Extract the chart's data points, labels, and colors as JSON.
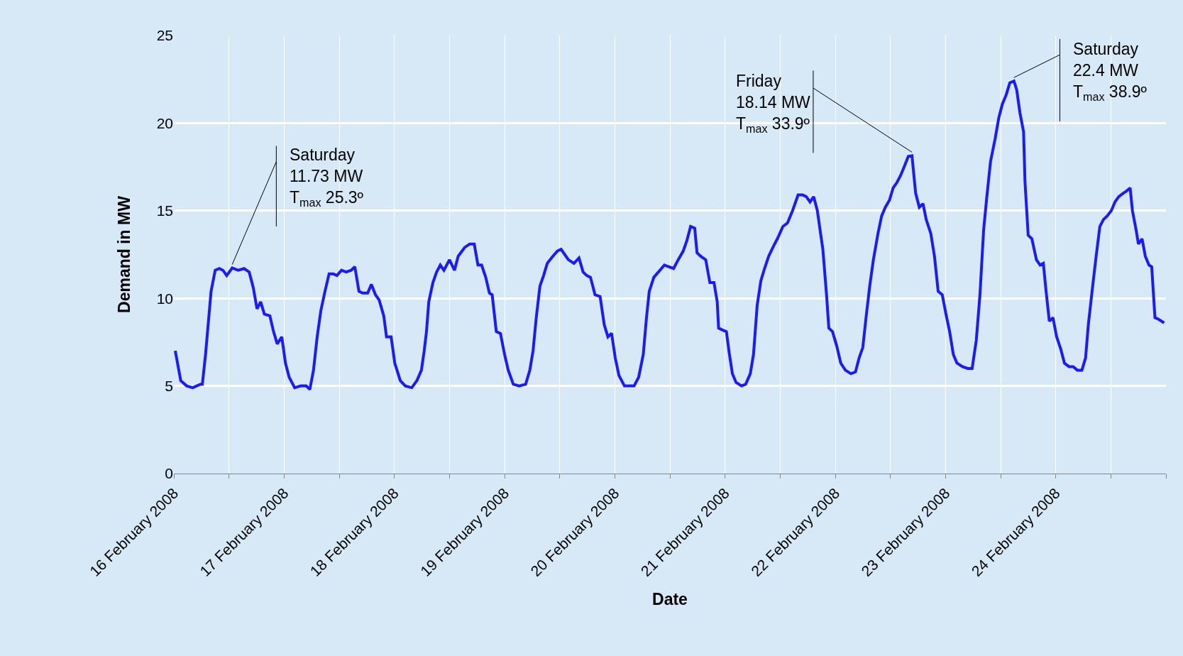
{
  "chart_data": {
    "type": "line",
    "xlabel": "Date",
    "ylabel": "Demand in MW",
    "x": [
      "2008-02-16T00:18",
      "2008-02-16T00:48",
      "2008-02-16T01:30",
      "2008-02-16T02:48",
      "2008-02-16T04:06",
      "2008-02-16T05:48",
      "2008-02-16T06:12",
      "2008-02-16T06:54",
      "2008-02-16T07:24",
      "2008-02-16T08:06",
      "2008-02-16T09:00",
      "2008-02-16T09:54",
      "2008-02-16T10:42",
      "2008-02-16T11:30",
      "2008-02-16T12:42",
      "2008-02-16T14:00",
      "2008-02-16T15:18",
      "2008-02-16T16:24",
      "2008-02-16T17:18",
      "2008-02-16T18:06",
      "2008-02-16T18:54",
      "2008-02-16T19:42",
      "2008-02-16T20:54",
      "2008-02-16T21:42",
      "2008-02-16T22:30",
      "2008-02-16T23:30",
      "2008-02-17T00:18",
      "2008-02-17T01:06",
      "2008-02-17T02:18",
      "2008-02-17T03:36",
      "2008-02-17T04:48",
      "2008-02-17T05:36",
      "2008-02-17T06:24",
      "2008-02-17T07:12",
      "2008-02-17T08:00",
      "2008-02-17T08:54",
      "2008-02-17T09:48",
      "2008-02-17T10:42",
      "2008-02-17T11:30",
      "2008-02-17T12:30",
      "2008-02-17T13:30",
      "2008-02-17T14:36",
      "2008-02-17T15:24",
      "2008-02-17T16:18",
      "2008-02-17T17:06",
      "2008-02-17T18:12",
      "2008-02-17T19:00",
      "2008-02-17T19:54",
      "2008-02-17T20:42",
      "2008-02-17T21:42",
      "2008-02-17T22:18",
      "2008-02-17T23:18",
      "2008-02-18T00:06",
      "2008-02-18T01:18",
      "2008-02-18T02:24",
      "2008-02-18T03:48",
      "2008-02-18T04:54",
      "2008-02-18T05:54",
      "2008-02-18T06:30",
      "2008-02-18T07:00",
      "2008-02-18T07:30",
      "2008-02-18T08:24",
      "2008-02-18T09:12",
      "2008-02-18T10:00",
      "2008-02-18T10:48",
      "2008-02-18T12:00",
      "2008-02-18T13:06",
      "2008-02-18T13:54",
      "2008-02-18T15:18",
      "2008-02-18T16:24",
      "2008-02-18T17:24",
      "2008-02-18T18:12",
      "2008-02-18T19:00",
      "2008-02-18T19:54",
      "2008-02-18T20:42",
      "2008-02-18T21:18",
      "2008-02-18T22:12",
      "2008-02-18T23:06",
      "2008-02-19T00:00",
      "2008-02-19T00:48",
      "2008-02-19T01:54",
      "2008-02-19T03:12",
      "2008-02-19T04:36",
      "2008-02-19T05:30",
      "2008-02-19T06:12",
      "2008-02-19T06:54",
      "2008-02-19T07:42",
      "2008-02-19T08:30",
      "2008-02-19T09:18",
      "2008-02-19T10:30",
      "2008-02-19T11:30",
      "2008-02-19T12:18",
      "2008-02-19T13:06",
      "2008-02-19T13:54",
      "2008-02-19T15:06",
      "2008-02-19T16:12",
      "2008-02-19T17:06",
      "2008-02-19T17:54",
      "2008-02-19T18:42",
      "2008-02-19T19:42",
      "2008-02-19T20:48",
      "2008-02-19T21:42",
      "2008-02-19T22:30",
      "2008-02-19T23:18",
      "2008-02-20T00:06",
      "2008-02-20T00:54",
      "2008-02-20T02:06",
      "2008-02-20T03:06",
      "2008-02-20T04:12",
      "2008-02-20T05:12",
      "2008-02-20T06:12",
      "2008-02-20T06:54",
      "2008-02-20T07:30",
      "2008-02-20T08:30",
      "2008-02-20T09:30",
      "2008-02-20T10:48",
      "2008-02-20T11:48",
      "2008-02-20T12:48",
      "2008-02-20T13:48",
      "2008-02-20T14:54",
      "2008-02-20T15:42",
      "2008-02-20T16:30",
      "2008-02-20T17:24",
      "2008-02-20T17:54",
      "2008-02-20T18:42",
      "2008-02-20T19:48",
      "2008-02-20T20:42",
      "2008-02-20T21:36",
      "2008-02-20T22:18",
      "2008-02-20T22:36",
      "2008-02-20T23:24",
      "2008-02-21T00:18",
      "2008-02-21T00:54",
      "2008-02-21T01:36",
      "2008-02-21T02:24",
      "2008-02-21T03:36",
      "2008-02-21T04:30",
      "2008-02-21T05:30",
      "2008-02-21T06:12",
      "2008-02-21T07:00",
      "2008-02-21T07:48",
      "2008-02-21T08:36",
      "2008-02-21T09:30",
      "2008-02-21T10:36",
      "2008-02-21T11:24",
      "2008-02-21T12:36",
      "2008-02-21T13:36",
      "2008-02-21T14:42",
      "2008-02-21T15:54",
      "2008-02-21T16:54",
      "2008-02-21T17:42",
      "2008-02-21T18:30",
      "2008-02-21T19:18",
      "2008-02-21T20:06",
      "2008-02-21T20:48",
      "2008-02-21T21:18",
      "2008-02-21T22:06",
      "2008-02-21T22:36",
      "2008-02-21T23:24",
      "2008-02-22T00:18",
      "2008-02-22T01:12",
      "2008-02-22T02:12",
      "2008-02-22T03:24",
      "2008-02-22T04:24",
      "2008-02-22T05:12",
      "2008-02-22T06:00",
      "2008-02-22T06:42",
      "2008-02-22T07:30",
      "2008-02-22T08:18",
      "2008-02-22T09:18",
      "2008-02-22T10:06",
      "2008-02-22T10:54",
      "2008-02-22T11:48",
      "2008-02-22T12:36",
      "2008-02-22T13:24",
      "2008-02-22T14:12",
      "2008-02-22T15:00",
      "2008-02-22T15:54",
      "2008-02-22T16:42",
      "2008-02-22T17:30",
      "2008-02-22T18:18",
      "2008-02-22T19:06",
      "2008-02-22T19:48",
      "2008-02-22T20:48",
      "2008-02-22T21:36",
      "2008-02-22T22:24",
      "2008-02-22T23:18",
      "2008-02-23T00:06",
      "2008-02-23T00:54",
      "2008-02-23T01:42",
      "2008-02-23T02:30",
      "2008-02-23T03:42",
      "2008-02-23T04:48",
      "2008-02-23T05:48",
      "2008-02-23T06:42",
      "2008-02-23T07:30",
      "2008-02-23T08:18",
      "2008-02-23T09:00",
      "2008-02-23T09:48",
      "2008-02-23T10:48",
      "2008-02-23T11:36",
      "2008-02-23T12:24",
      "2008-02-23T13:12",
      "2008-02-23T14:00",
      "2008-02-23T14:54",
      "2008-02-23T15:30",
      "2008-02-23T16:12",
      "2008-02-23T17:00",
      "2008-02-23T17:18",
      "2008-02-23T18:00",
      "2008-02-23T18:48",
      "2008-02-23T19:48",
      "2008-02-23T20:36",
      "2008-02-23T21:18",
      "2008-02-23T21:54",
      "2008-02-23T22:36",
      "2008-02-23T23:24",
      "2008-02-24T00:12",
      "2008-02-24T01:06",
      "2008-02-24T01:54",
      "2008-02-24T02:54",
      "2008-02-24T03:48",
      "2008-02-24T04:42",
      "2008-02-24T05:42",
      "2008-02-24T06:30",
      "2008-02-24T07:06",
      "2008-02-24T08:00",
      "2008-02-24T08:48",
      "2008-02-24T09:36",
      "2008-02-24T10:24",
      "2008-02-24T11:12",
      "2008-02-24T12:06",
      "2008-02-24T12:54",
      "2008-02-24T13:42",
      "2008-02-24T14:42",
      "2008-02-24T15:18",
      "2008-02-24T16:12",
      "2008-02-24T16:42",
      "2008-02-24T17:30",
      "2008-02-24T18:00",
      "2008-02-24T18:48",
      "2008-02-24T19:30",
      "2008-02-24T20:18",
      "2008-02-24T20:54",
      "2008-02-24T21:36",
      "2008-02-24T22:24",
      "2008-02-24T23:36"
    ],
    "series": [
      {
        "color": "#1a1aff",
        "values": [
          7.0,
          6.3,
          5.3,
          5.0,
          4.9,
          5.1,
          5.1,
          6.8,
          8.3,
          10.4,
          11.6,
          11.7,
          11.6,
          11.3,
          11.73,
          11.6,
          11.7,
          11.5,
          10.6,
          9.4,
          9.8,
          9.1,
          9.0,
          8.1,
          7.4,
          7.8,
          6.3,
          5.5,
          4.9,
          5.0,
          5.0,
          4.8,
          5.9,
          7.8,
          9.3,
          10.4,
          11.4,
          11.4,
          11.3,
          11.6,
          11.5,
          11.6,
          11.8,
          10.4,
          10.3,
          10.3,
          10.8,
          10.2,
          9.9,
          9.0,
          7.8,
          7.8,
          6.3,
          5.3,
          5.0,
          4.9,
          5.3,
          5.9,
          7.0,
          8.1,
          9.8,
          10.9,
          11.5,
          11.9,
          11.6,
          12.2,
          11.6,
          12.4,
          12.9,
          13.1,
          13.1,
          11.9,
          11.9,
          11.2,
          10.3,
          10.2,
          8.1,
          8.0,
          6.8,
          5.9,
          5.1,
          5.0,
          5.1,
          5.9,
          7.0,
          8.9,
          10.7,
          11.3,
          12.0,
          12.4,
          12.7,
          12.8,
          12.5,
          12.2,
          12.0,
          12.3,
          11.5,
          11.3,
          11.2,
          10.2,
          10.1,
          8.5,
          7.8,
          8.0,
          6.6,
          5.6,
          5.0,
          5.0,
          5.0,
          5.5,
          6.8,
          8.9,
          10.4,
          11.2,
          11.5,
          11.9,
          11.8,
          11.7,
          12.2,
          12.7,
          13.3,
          14.1,
          14.0,
          12.6,
          12.4,
          12.2,
          10.9,
          10.9,
          9.8,
          8.3,
          8.2,
          8.1,
          6.9,
          5.7,
          5.2,
          5.0,
          5.1,
          5.7,
          6.8,
          9.6,
          11.0,
          11.7,
          12.4,
          13.0,
          13.4,
          14.1,
          14.3,
          15.0,
          15.9,
          15.9,
          15.8,
          15.5,
          15.8,
          15.0,
          13.7,
          12.8,
          10.2,
          8.3,
          8.1,
          7.3,
          6.3,
          5.9,
          5.7,
          5.8,
          6.6,
          7.2,
          8.9,
          10.7,
          12.2,
          13.7,
          14.7,
          15.2,
          15.6,
          16.3,
          16.6,
          17.0,
          17.5,
          18.1,
          18.14,
          16.0,
          15.2,
          15.4,
          14.5,
          13.7,
          12.4,
          10.4,
          10.2,
          9.1,
          8.1,
          6.8,
          6.3,
          6.1,
          6.0,
          6.0,
          7.6,
          10.2,
          13.9,
          15.8,
          17.8,
          19.1,
          20.3,
          21.1,
          21.6,
          22.3,
          22.4,
          21.9,
          20.6,
          19.5,
          16.7,
          13.6,
          13.4,
          12.2,
          11.9,
          12.0,
          10.4,
          8.7,
          8.9,
          7.8,
          7.1,
          6.3,
          6.1,
          6.1,
          5.9,
          5.9,
          6.6,
          8.5,
          10.6,
          12.4,
          14.1,
          14.5,
          14.7,
          15.0,
          15.5,
          15.8,
          16.0,
          16.1,
          16.3,
          15.0,
          13.9,
          13.1,
          13.4,
          12.4,
          11.9,
          11.8,
          8.9,
          8.8,
          8.6
        ]
      }
    ],
    "xlim": [
      "2008-02-16",
      "2008-02-25"
    ],
    "xticks": [
      {
        "value": "2008-02-16",
        "label": "16 February 2008"
      },
      {
        "value": "2008-02-16T12:00",
        "label": null
      },
      {
        "value": "2008-02-17",
        "label": "17 February 2008"
      },
      {
        "value": "2008-02-17T12:00",
        "label": null
      },
      {
        "value": "2008-02-18",
        "label": "18 February 2008"
      },
      {
        "value": "2008-02-18T12:00",
        "label": null
      },
      {
        "value": "2008-02-19",
        "label": "19 February 2008"
      },
      {
        "value": "2008-02-19T12:00",
        "label": null
      },
      {
        "value": "2008-02-20",
        "label": "20 February 2008"
      },
      {
        "value": "2008-02-20T12:00",
        "label": null
      },
      {
        "value": "2008-02-21",
        "label": "21 February 2008"
      },
      {
        "value": "2008-02-21T12:00",
        "label": null
      },
      {
        "value": "2008-02-22",
        "label": "22 February 2008"
      },
      {
        "value": "2008-02-22T12:00",
        "label": null
      },
      {
        "value": "2008-02-23",
        "label": "23 February 2008"
      },
      {
        "value": "2008-02-23T12:00",
        "label": null
      },
      {
        "value": "2008-02-24",
        "label": "24 February 2008"
      },
      {
        "value": "2008-02-24T12:00",
        "label": null
      },
      {
        "value": "2008-02-25",
        "label": null
      }
    ],
    "ylim": [
      0,
      25
    ],
    "yticks": [
      0,
      5,
      10,
      15,
      20,
      25
    ],
    "grid": true,
    "marker": "none",
    "line_style": "solid",
    "annotations": [
      {
        "text": "Saturday\n11.73 MW\nT$_{max}$ 25.3º",
        "x": "2008-02-16T12:42",
        "y": 11.73
      },
      {
        "text": "Friday\n18.14 MW\nT$_{max}$ 33.9º",
        "x": "2008-02-22T16:42",
        "y": 18.14
      },
      {
        "text": "Saturday\n22.4 MW\nT$_{max}$ 38.9º",
        "x": "2008-02-23T14:54",
        "y": 22.4
      }
    ]
  }
}
